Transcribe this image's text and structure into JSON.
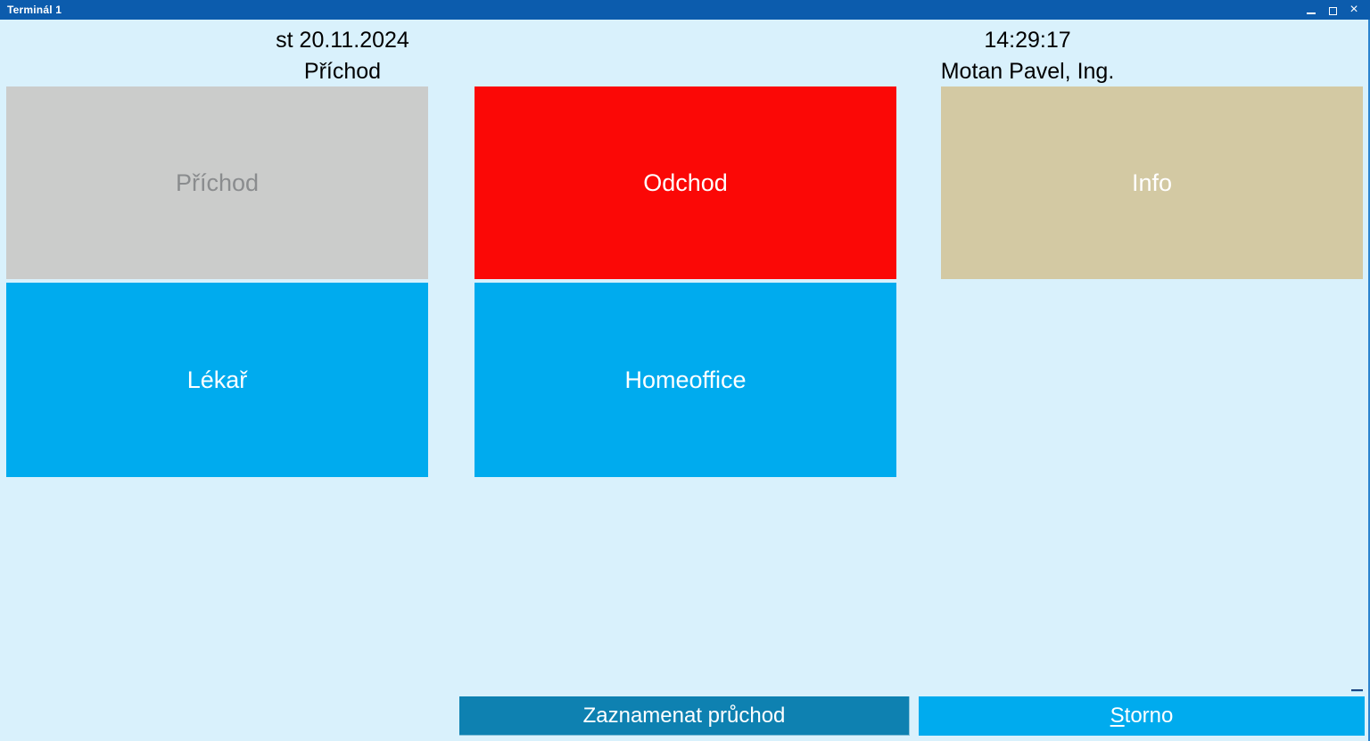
{
  "titlebar": {
    "title": "Terminál 1",
    "close_glyph": "×"
  },
  "header": {
    "date": "st 20.11.2024",
    "selected_mode": "Příchod",
    "time": "14:29:17",
    "user": "Motan Pavel, Ing."
  },
  "buttons": {
    "prichod": {
      "label": "Příchod",
      "bg": "#cbcccb",
      "fg": "#8a8c8e",
      "state": "disabled"
    },
    "odchod": {
      "label": "Odchod",
      "bg": "#fb0806",
      "fg": "#ffffff",
      "state": "enabled"
    },
    "info": {
      "label": "Info",
      "bg": "#d3c9a3",
      "fg": "#ffffff",
      "state": "enabled"
    },
    "lekar": {
      "label": "Lékař",
      "bg": "#00abee",
      "fg": "#ffffff",
      "state": "enabled"
    },
    "homeoffice": {
      "label": "Homeoffice",
      "bg": "#00abee",
      "fg": "#ffffff",
      "state": "enabled"
    }
  },
  "footer": {
    "record_label": "Zaznamenat průchod",
    "record_bg": "#0e81b1",
    "storno_accelerator": "S",
    "storno_rest": "torno",
    "storno_bg": "#00abee"
  },
  "colors": {
    "titlebar_bg": "#0c5cad",
    "window_bg": "#d9f1fc",
    "window_border": "#2b84cf",
    "header_text": "#000000"
  }
}
